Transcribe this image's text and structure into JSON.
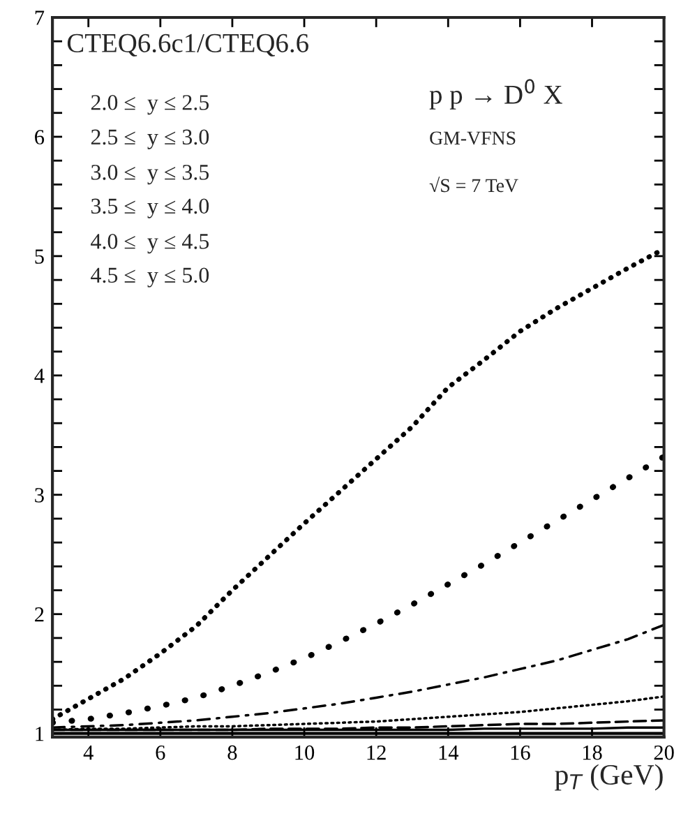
{
  "chart_data": {
    "type": "line",
    "title": "CTEQ6.6c1/CTEQ6.6",
    "xlabel": "p$_{T}$ (GeV)",
    "x": [
      3,
      4,
      5,
      6,
      7,
      8,
      9,
      10,
      11,
      12,
      13,
      14,
      15,
      16,
      17,
      18,
      19,
      20
    ],
    "series": [
      {
        "color": "#000000",
        "line_style": "solid",
        "values": [
          1.03,
          1.03,
          1.03,
          1.03,
          1.03,
          1.03,
          1.03,
          1.03,
          1.03,
          1.03,
          1.03,
          1.03,
          1.04,
          1.04,
          1.04,
          1.04,
          1.05,
          1.05
        ]
      },
      {
        "color": "#000000",
        "line_style": "dashed",
        "values": [
          1.03,
          1.03,
          1.03,
          1.03,
          1.03,
          1.03,
          1.04,
          1.04,
          1.04,
          1.05,
          1.05,
          1.06,
          1.07,
          1.08,
          1.08,
          1.09,
          1.1,
          1.11
        ]
      },
      {
        "color": "#000000",
        "line_style": "dotted",
        "values": [
          1.03,
          1.04,
          1.04,
          1.05,
          1.06,
          1.06,
          1.07,
          1.08,
          1.09,
          1.1,
          1.12,
          1.14,
          1.16,
          1.18,
          1.21,
          1.24,
          1.27,
          1.31
        ]
      },
      {
        "color": "#000000",
        "line_style": "dashdot",
        "values": [
          1.05,
          1.06,
          1.07,
          1.09,
          1.11,
          1.14,
          1.17,
          1.21,
          1.25,
          1.3,
          1.35,
          1.41,
          1.47,
          1.54,
          1.61,
          1.7,
          1.79,
          1.91
        ]
      },
      {
        "color": "#000000",
        "line_style": "dotted",
        "values": [
          1.09,
          1.12,
          1.17,
          1.23,
          1.3,
          1.4,
          1.51,
          1.63,
          1.77,
          1.92,
          2.08,
          2.25,
          2.42,
          2.6,
          2.78,
          2.96,
          3.14,
          3.32
        ]
      },
      {
        "color": "#000000",
        "line_style": "dotted",
        "values": [
          1.12,
          1.29,
          1.46,
          1.67,
          1.9,
          2.2,
          2.48,
          2.76,
          3.03,
          3.3,
          3.57,
          3.9,
          4.13,
          4.37,
          4.56,
          4.73,
          4.9,
          5.06
        ]
      }
    ],
    "ref_lines": [
      {
        "axis": "y",
        "value": 1,
        "color": "#000000",
        "line_style": "solid"
      }
    ],
    "annotations": [
      "2.0 ≤  y ≤ 2.5",
      "2.5 ≤  y ≤ 3.0",
      "3.0 ≤  y ≤ 3.5",
      "3.5 ≤  y ≤ 4.0",
      "4.0 ≤  y ≤ 4.5",
      "4.5 ≤  y ≤ 5.0",
      "p p → D$^{0}$ X",
      "GM-VFNS",
      "√S = 7 TeV"
    ],
    "xlim": [
      3,
      20
    ],
    "xticks": [
      4,
      6,
      8,
      10,
      12,
      14,
      16,
      18,
      20
    ],
    "ylim": [
      0.97,
      7
    ],
    "yticks": [
      1,
      {
        "value": 1.2,
        "label": null
      },
      {
        "value": 1.4,
        "label": null
      },
      {
        "value": 1.6,
        "label": null
      },
      {
        "value": 1.8,
        "label": null
      },
      2,
      {
        "value": 2.2,
        "label": null
      },
      {
        "value": 2.4,
        "label": null
      },
      {
        "value": 2.6,
        "label": null
      },
      {
        "value": 2.8,
        "label": null
      },
      3,
      {
        "value": 3.2,
        "label": null
      },
      {
        "value": 3.4,
        "label": null
      },
      {
        "value": 3.6,
        "label": null
      },
      {
        "value": 3.8,
        "label": null
      },
      4,
      {
        "value": 4.2,
        "label": null
      },
      {
        "value": 4.4,
        "label": null
      },
      {
        "value": 4.6,
        "label": null
      },
      {
        "value": 4.8,
        "label": null
      },
      5,
      {
        "value": 5.2,
        "label": null
      },
      {
        "value": 5.4,
        "label": null
      },
      {
        "value": 5.6,
        "label": null
      },
      {
        "value": 5.8,
        "label": null
      },
      6,
      {
        "value": 6.2,
        "label": null
      },
      {
        "value": 6.4,
        "label": null
      },
      {
        "value": 6.6,
        "label": null
      },
      {
        "value": 6.8,
        "label": null
      },
      7
    ],
    "grid": false,
    "legend": false
  }
}
